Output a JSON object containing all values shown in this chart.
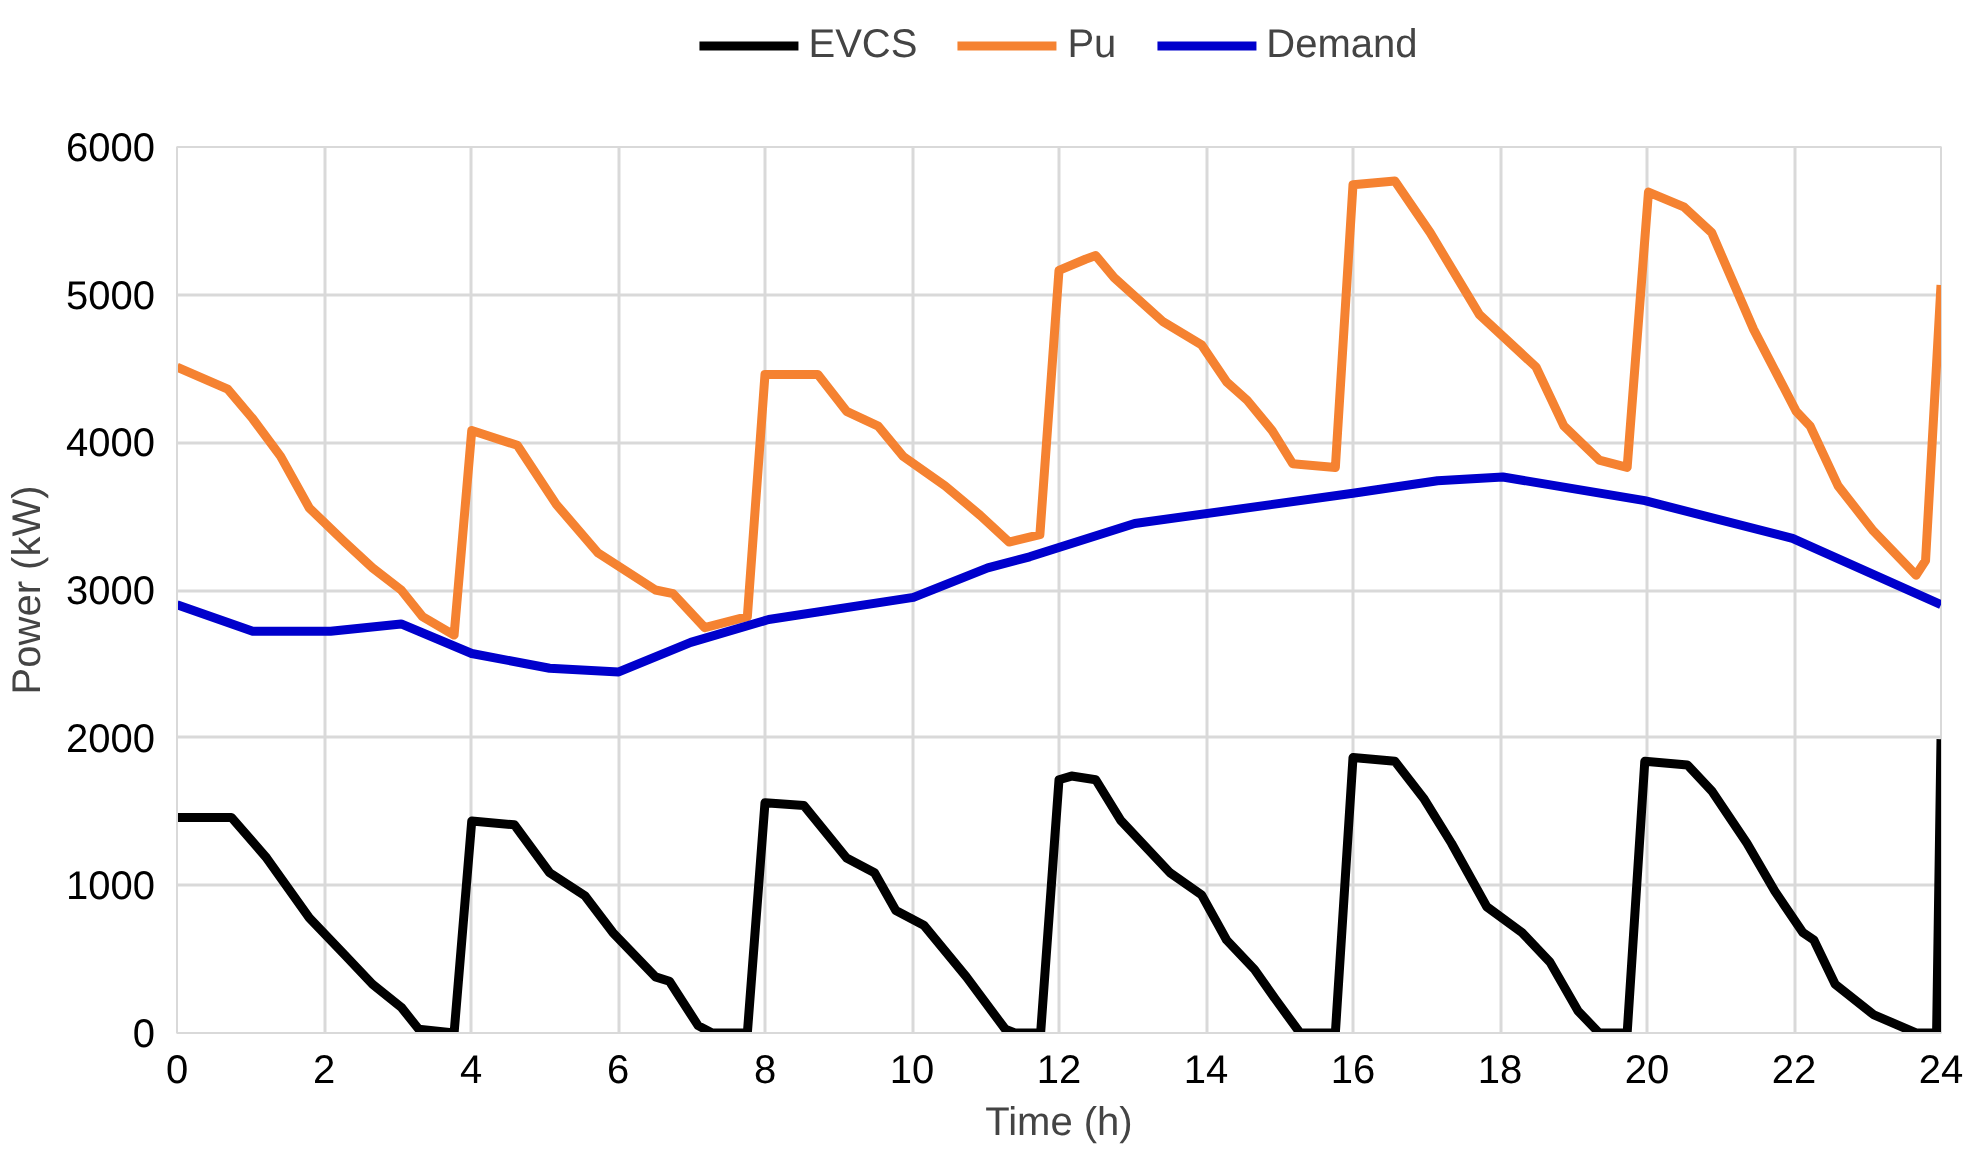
{
  "chart_data": {
    "type": "line",
    "xlabel": "Time (h)",
    "ylabel": "Power (kW)",
    "xlim": [
      0,
      24
    ],
    "xticks": [
      0,
      2,
      4,
      6,
      8,
      10,
      12,
      14,
      16,
      18,
      20,
      22,
      24
    ],
    "ylim": [
      0,
      6000
    ],
    "yticks": [
      0,
      1000,
      2000,
      3000,
      4000,
      5000,
      6000
    ],
    "grid": true,
    "legend": "top",
    "marker": "none",
    "line_style": "solid",
    "series": [
      {
        "name": "EVCS",
        "color": "#000000",
        "x": [
          0,
          0.74,
          1.22,
          1.8,
          2.28,
          2.66,
          3.05,
          3.29,
          3.77,
          4.01,
          4.59,
          5.07,
          5.55,
          5.93,
          6.51,
          6.7,
          7.09,
          7.28,
          7.76,
          8.0,
          8.53,
          9.11,
          9.49,
          9.78,
          10.16,
          10.74,
          11.27,
          11.4,
          11.75,
          12.0,
          12.17,
          12.5,
          12.84,
          13.51,
          13.94,
          14.28,
          14.66,
          14.95,
          15.28,
          15.76,
          16.0,
          16.57,
          16.96,
          17.34,
          17.82,
          18.3,
          18.68,
          19.06,
          19.35,
          19.73,
          19.97,
          20.55,
          20.88,
          21.36,
          21.74,
          22.12,
          22.27,
          22.56,
          23.08,
          23.66,
          23.94,
          24.0
        ],
        "values": [
          1460,
          1460,
          1185,
          780,
          530,
          330,
          175,
          25,
          0,
          1435,
          1410,
          1085,
          930,
          680,
          380,
          350,
          50,
          0,
          0,
          1560,
          1540,
          1185,
          1085,
          830,
          730,
          380,
          25,
          0,
          0,
          1715,
          1740,
          1715,
          1440,
          1085,
          935,
          630,
          430,
          225,
          0,
          0,
          1865,
          1840,
          1590,
          1285,
          855,
          680,
          480,
          150,
          0,
          0,
          1840,
          1815,
          1640,
          1285,
          960,
          680,
          630,
          330,
          125,
          0,
          0,
          1990
        ]
      },
      {
        "name": "Pu",
        "color": "#f58231",
        "x": [
          0,
          0.69,
          1.03,
          1.41,
          1.8,
          2.28,
          2.66,
          3.05,
          3.34,
          3.77,
          4.01,
          4.63,
          5.16,
          5.73,
          6.51,
          6.75,
          7.18,
          7.76,
          8.0,
          8.72,
          9.11,
          9.54,
          9.88,
          10.45,
          10.93,
          11.32,
          11.74,
          12.0,
          12.36,
          12.5,
          12.75,
          13.42,
          13.94,
          14.28,
          14.56,
          14.9,
          15.18,
          15.76,
          16.0,
          16.57,
          17.05,
          17.72,
          18.49,
          18.87,
          19.35,
          19.73,
          20.02,
          20.5,
          20.88,
          21.45,
          22.03,
          22.22,
          22.6,
          23.08,
          23.66,
          23.79,
          24.0
        ],
        "values": [
          4510,
          4360,
          4160,
          3905,
          3555,
          3325,
          3150,
          3000,
          2820,
          2695,
          4080,
          3980,
          3580,
          3250,
          3000,
          2975,
          2745,
          2820,
          4460,
          4460,
          4210,
          4110,
          3905,
          3705,
          3505,
          3325,
          3375,
          5165,
          5240,
          5265,
          5115,
          4815,
          4660,
          4410,
          4285,
          4080,
          3855,
          3830,
          5745,
          5770,
          5420,
          4865,
          4510,
          4110,
          3880,
          3830,
          5695,
          5595,
          5420,
          4765,
          4210,
          4110,
          3705,
          3400,
          3100,
          3200,
          5065
        ]
      },
      {
        "name": "Demand",
        "color": "#0000cc",
        "x": [
          0,
          1.03,
          2.09,
          3.05,
          4.01,
          5.07,
          6.01,
          6.99,
          8.05,
          10.02,
          11.03,
          11.6,
          13.03,
          16.0,
          17.15,
          18.04,
          19.97,
          21.98,
          24.0
        ],
        "values": [
          2900,
          2720,
          2720,
          2770,
          2570,
          2470,
          2445,
          2645,
          2800,
          2950,
          3150,
          3225,
          3450,
          3655,
          3740,
          3765,
          3605,
          3350,
          2900
        ]
      }
    ]
  }
}
